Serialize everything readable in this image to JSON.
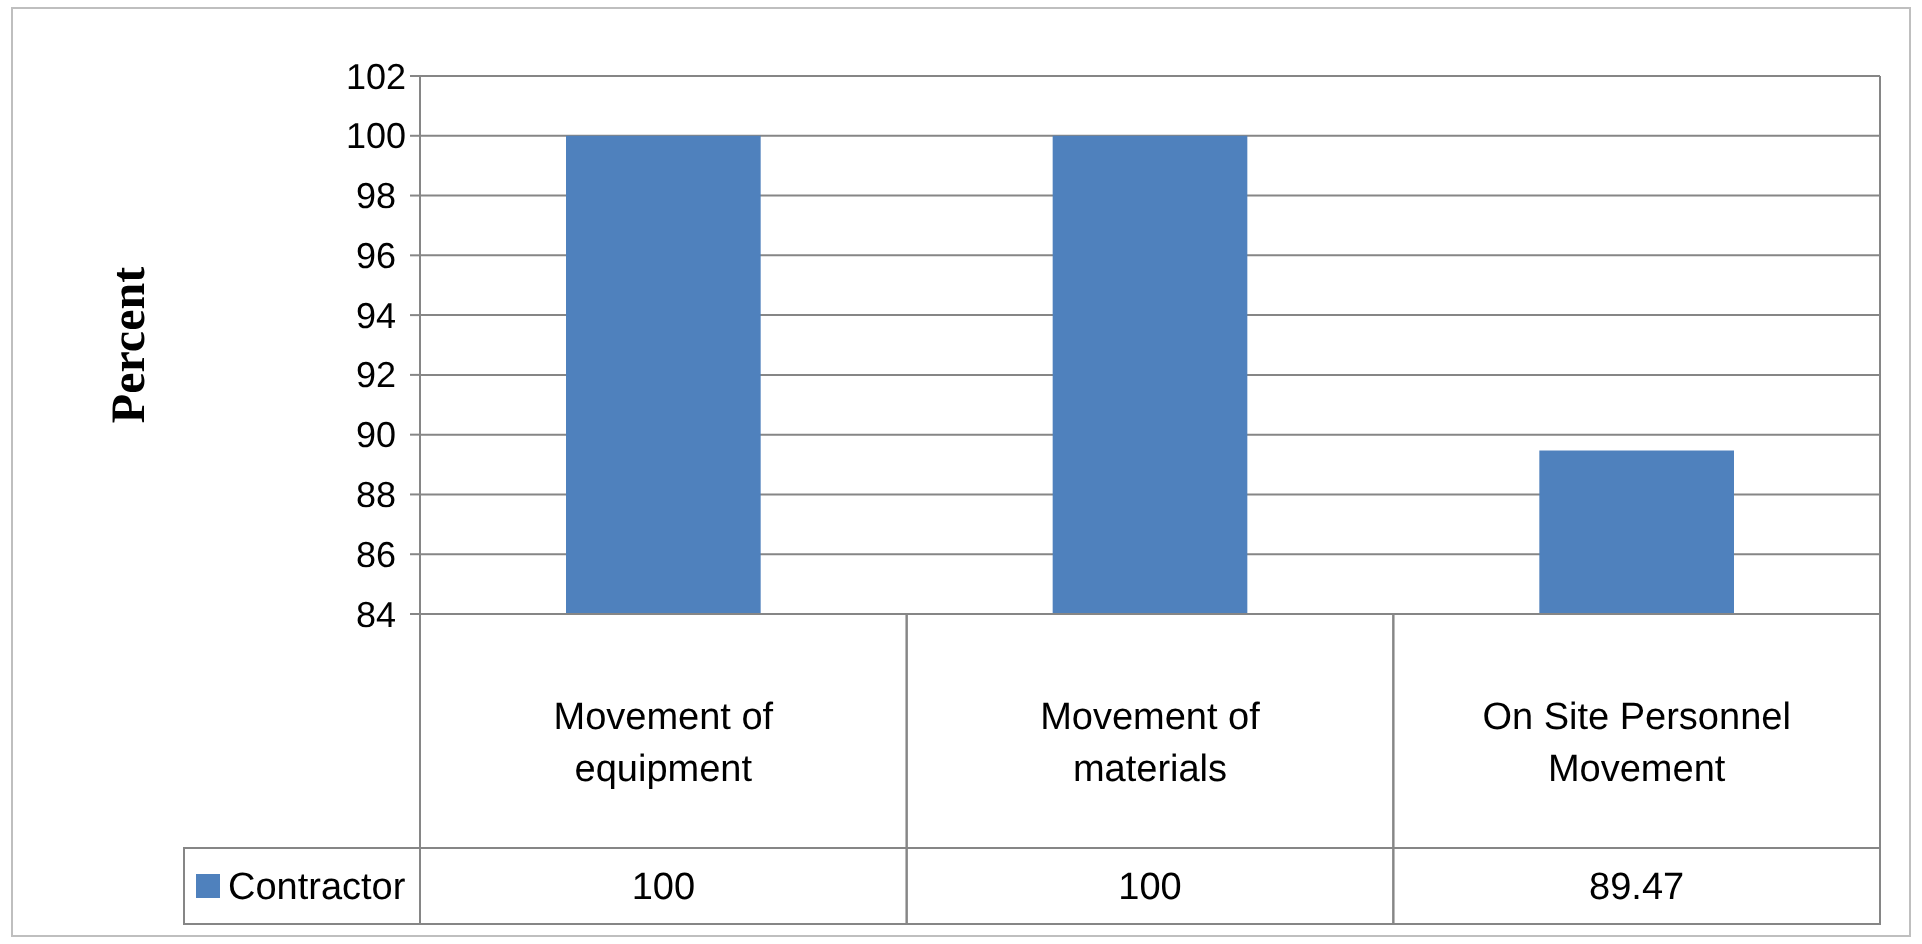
{
  "chart_data": {
    "type": "bar",
    "ylabel": "Percent",
    "categories": [
      "Movement of equipment",
      "Movement of materials",
      "On Site Personnel Movement"
    ],
    "series": [
      {
        "name": "Contractor",
        "color": "#4f81bd",
        "values": [
          100,
          100,
          89.47
        ]
      }
    ],
    "ylim": [
      84,
      102
    ],
    "yticks": [
      84,
      86,
      88,
      90,
      92,
      94,
      96,
      98,
      100,
      102
    ],
    "grid": "y",
    "legend": "bottom",
    "data_labels": true
  }
}
